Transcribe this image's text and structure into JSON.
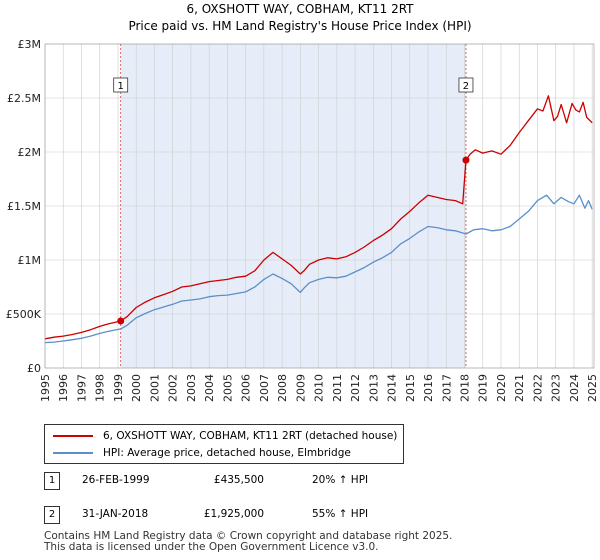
{
  "title_line1": "6, OXSHOTT WAY, COBHAM, KT11 2RT",
  "title_line2": "Price paid vs. HM Land Registry's House Price Index (HPI)",
  "colors": {
    "property": "#cc0000",
    "hpi": "#5b8fc9",
    "shade": "#dde6f5",
    "grid": "#cccccc"
  },
  "chart_data": {
    "type": "line",
    "title": "6, OXSHOTT WAY, COBHAM, KT11 2RT — Price paid vs. HM Land Registry's House Price Index (HPI)",
    "xlim": [
      1995.0,
      2025.1
    ],
    "ylim": [
      0,
      3000000
    ],
    "x_ticks": [
      "1995",
      "1996",
      "1997",
      "1998",
      "1999",
      "2000",
      "2001",
      "2002",
      "2003",
      "2004",
      "2005",
      "2006",
      "2007",
      "2008",
      "2009",
      "2010",
      "2011",
      "2012",
      "2013",
      "2014",
      "2015",
      "2016",
      "2017",
      "2018",
      "2019",
      "2020",
      "2021",
      "2022",
      "2023",
      "2024",
      "2025"
    ],
    "y_ticks": [
      {
        "value": 0,
        "label": "£0"
      },
      {
        "value": 500000,
        "label": "£500K"
      },
      {
        "value": 1000000,
        "label": "£1M"
      },
      {
        "value": 1500000,
        "label": "£1.5M"
      },
      {
        "value": 2000000,
        "label": "£2M"
      },
      {
        "value": 2500000,
        "label": "£2.5M"
      },
      {
        "value": 3000000,
        "label": "£3M"
      }
    ],
    "series": [
      {
        "name": "6, OXSHOTT WAY, COBHAM, KT11 2RT (detached house)",
        "color": "#cc0000",
        "x": [
          1995.0,
          1995.5,
          1996.0,
          1996.5,
          1997.0,
          1997.5,
          1998.0,
          1998.5,
          1999.15,
          1999.5,
          2000.0,
          2000.5,
          2001.0,
          2001.5,
          2002.0,
          2002.5,
          2003.0,
          2003.5,
          2004.0,
          2004.5,
          2005.0,
          2005.5,
          2006.0,
          2006.5,
          2007.0,
          2007.5,
          2008.0,
          2008.5,
          2009.0,
          2009.2,
          2009.5,
          2010.0,
          2010.5,
          2011.0,
          2011.5,
          2012.0,
          2012.5,
          2013.0,
          2013.5,
          2014.0,
          2014.5,
          2015.0,
          2015.5,
          2016.0,
          2016.5,
          2017.0,
          2017.5,
          2017.9,
          2018.08,
          2018.3,
          2018.6,
          2019.0,
          2019.5,
          2020.0,
          2020.5,
          2021.0,
          2021.5,
          2022.0,
          2022.3,
          2022.6,
          2022.9,
          2023.1,
          2023.3,
          2023.6,
          2023.9,
          2024.1,
          2024.3,
          2024.5,
          2024.7,
          2025.0
        ],
        "y": [
          270000,
          285000,
          295000,
          310000,
          330000,
          355000,
          385000,
          410000,
          435500,
          475000,
          560000,
          610000,
          650000,
          680000,
          710000,
          750000,
          760000,
          780000,
          800000,
          810000,
          820000,
          840000,
          850000,
          900000,
          1000000,
          1070000,
          1010000,
          950000,
          870000,
          900000,
          960000,
          1000000,
          1020000,
          1010000,
          1030000,
          1070000,
          1120000,
          1180000,
          1230000,
          1290000,
          1380000,
          1450000,
          1530000,
          1600000,
          1580000,
          1560000,
          1550000,
          1520000,
          1925000,
          1980000,
          2020000,
          1990000,
          2010000,
          1980000,
          2060000,
          2180000,
          2290000,
          2400000,
          2380000,
          2520000,
          2290000,
          2330000,
          2440000,
          2270000,
          2450000,
          2390000,
          2370000,
          2460000,
          2320000,
          2270000
        ]
      },
      {
        "name": "HPI: Average price, detached house, Elmbridge",
        "color": "#5b8fc9",
        "x": [
          1995.0,
          1995.5,
          1996.0,
          1996.5,
          1997.0,
          1997.5,
          1998.0,
          1998.5,
          1999.15,
          1999.5,
          2000.0,
          2000.5,
          2001.0,
          2001.5,
          2002.0,
          2002.5,
          2003.0,
          2003.5,
          2004.0,
          2004.5,
          2005.0,
          2005.5,
          2006.0,
          2006.5,
          2007.0,
          2007.5,
          2008.0,
          2008.5,
          2009.0,
          2009.2,
          2009.5,
          2010.0,
          2010.5,
          2011.0,
          2011.5,
          2012.0,
          2012.5,
          2013.0,
          2013.5,
          2014.0,
          2014.5,
          2015.0,
          2015.5,
          2016.0,
          2016.5,
          2017.0,
          2017.5,
          2018.08,
          2018.5,
          2019.0,
          2019.5,
          2020.0,
          2020.5,
          2021.0,
          2021.5,
          2022.0,
          2022.5,
          2022.9,
          2023.3,
          2023.7,
          2024.0,
          2024.3,
          2024.6,
          2024.8,
          2025.0
        ],
        "y": [
          235000,
          240000,
          250000,
          262000,
          275000,
          295000,
          320000,
          340000,
          362000,
          395000,
          465000,
          505000,
          540000,
          565000,
          590000,
          620000,
          630000,
          640000,
          660000,
          670000,
          675000,
          690000,
          705000,
          750000,
          820000,
          870000,
          830000,
          780000,
          700000,
          740000,
          790000,
          820000,
          840000,
          835000,
          850000,
          890000,
          930000,
          980000,
          1020000,
          1070000,
          1150000,
          1200000,
          1260000,
          1310000,
          1300000,
          1280000,
          1270000,
          1241000,
          1280000,
          1290000,
          1270000,
          1280000,
          1310000,
          1380000,
          1450000,
          1550000,
          1600000,
          1520000,
          1580000,
          1540000,
          1520000,
          1600000,
          1480000,
          1550000,
          1470000
        ]
      }
    ],
    "annotations": [
      {
        "label": "1",
        "x": 1999.15,
        "y": 435500
      },
      {
        "label": "2",
        "x": 2018.08,
        "y": 1925000
      }
    ],
    "shaded_region": [
      1999.15,
      2018.08
    ],
    "legend_position": "below"
  },
  "legend": {
    "property_label": "6, OXSHOTT WAY, COBHAM, KT11 2RT (detached house)",
    "hpi_label": "HPI: Average price, detached house, Elmbridge"
  },
  "transactions": [
    {
      "num": "1",
      "date": "26-FEB-1999",
      "price": "£435,500",
      "hpi": "20% ↑ HPI"
    },
    {
      "num": "2",
      "date": "31-JAN-2018",
      "price": "£1,925,000",
      "hpi": "55% ↑ HPI"
    }
  ],
  "footer": {
    "line1": "Contains HM Land Registry data © Crown copyright and database right 2025.",
    "line2": "This data is licensed under the Open Government Licence v3.0."
  }
}
